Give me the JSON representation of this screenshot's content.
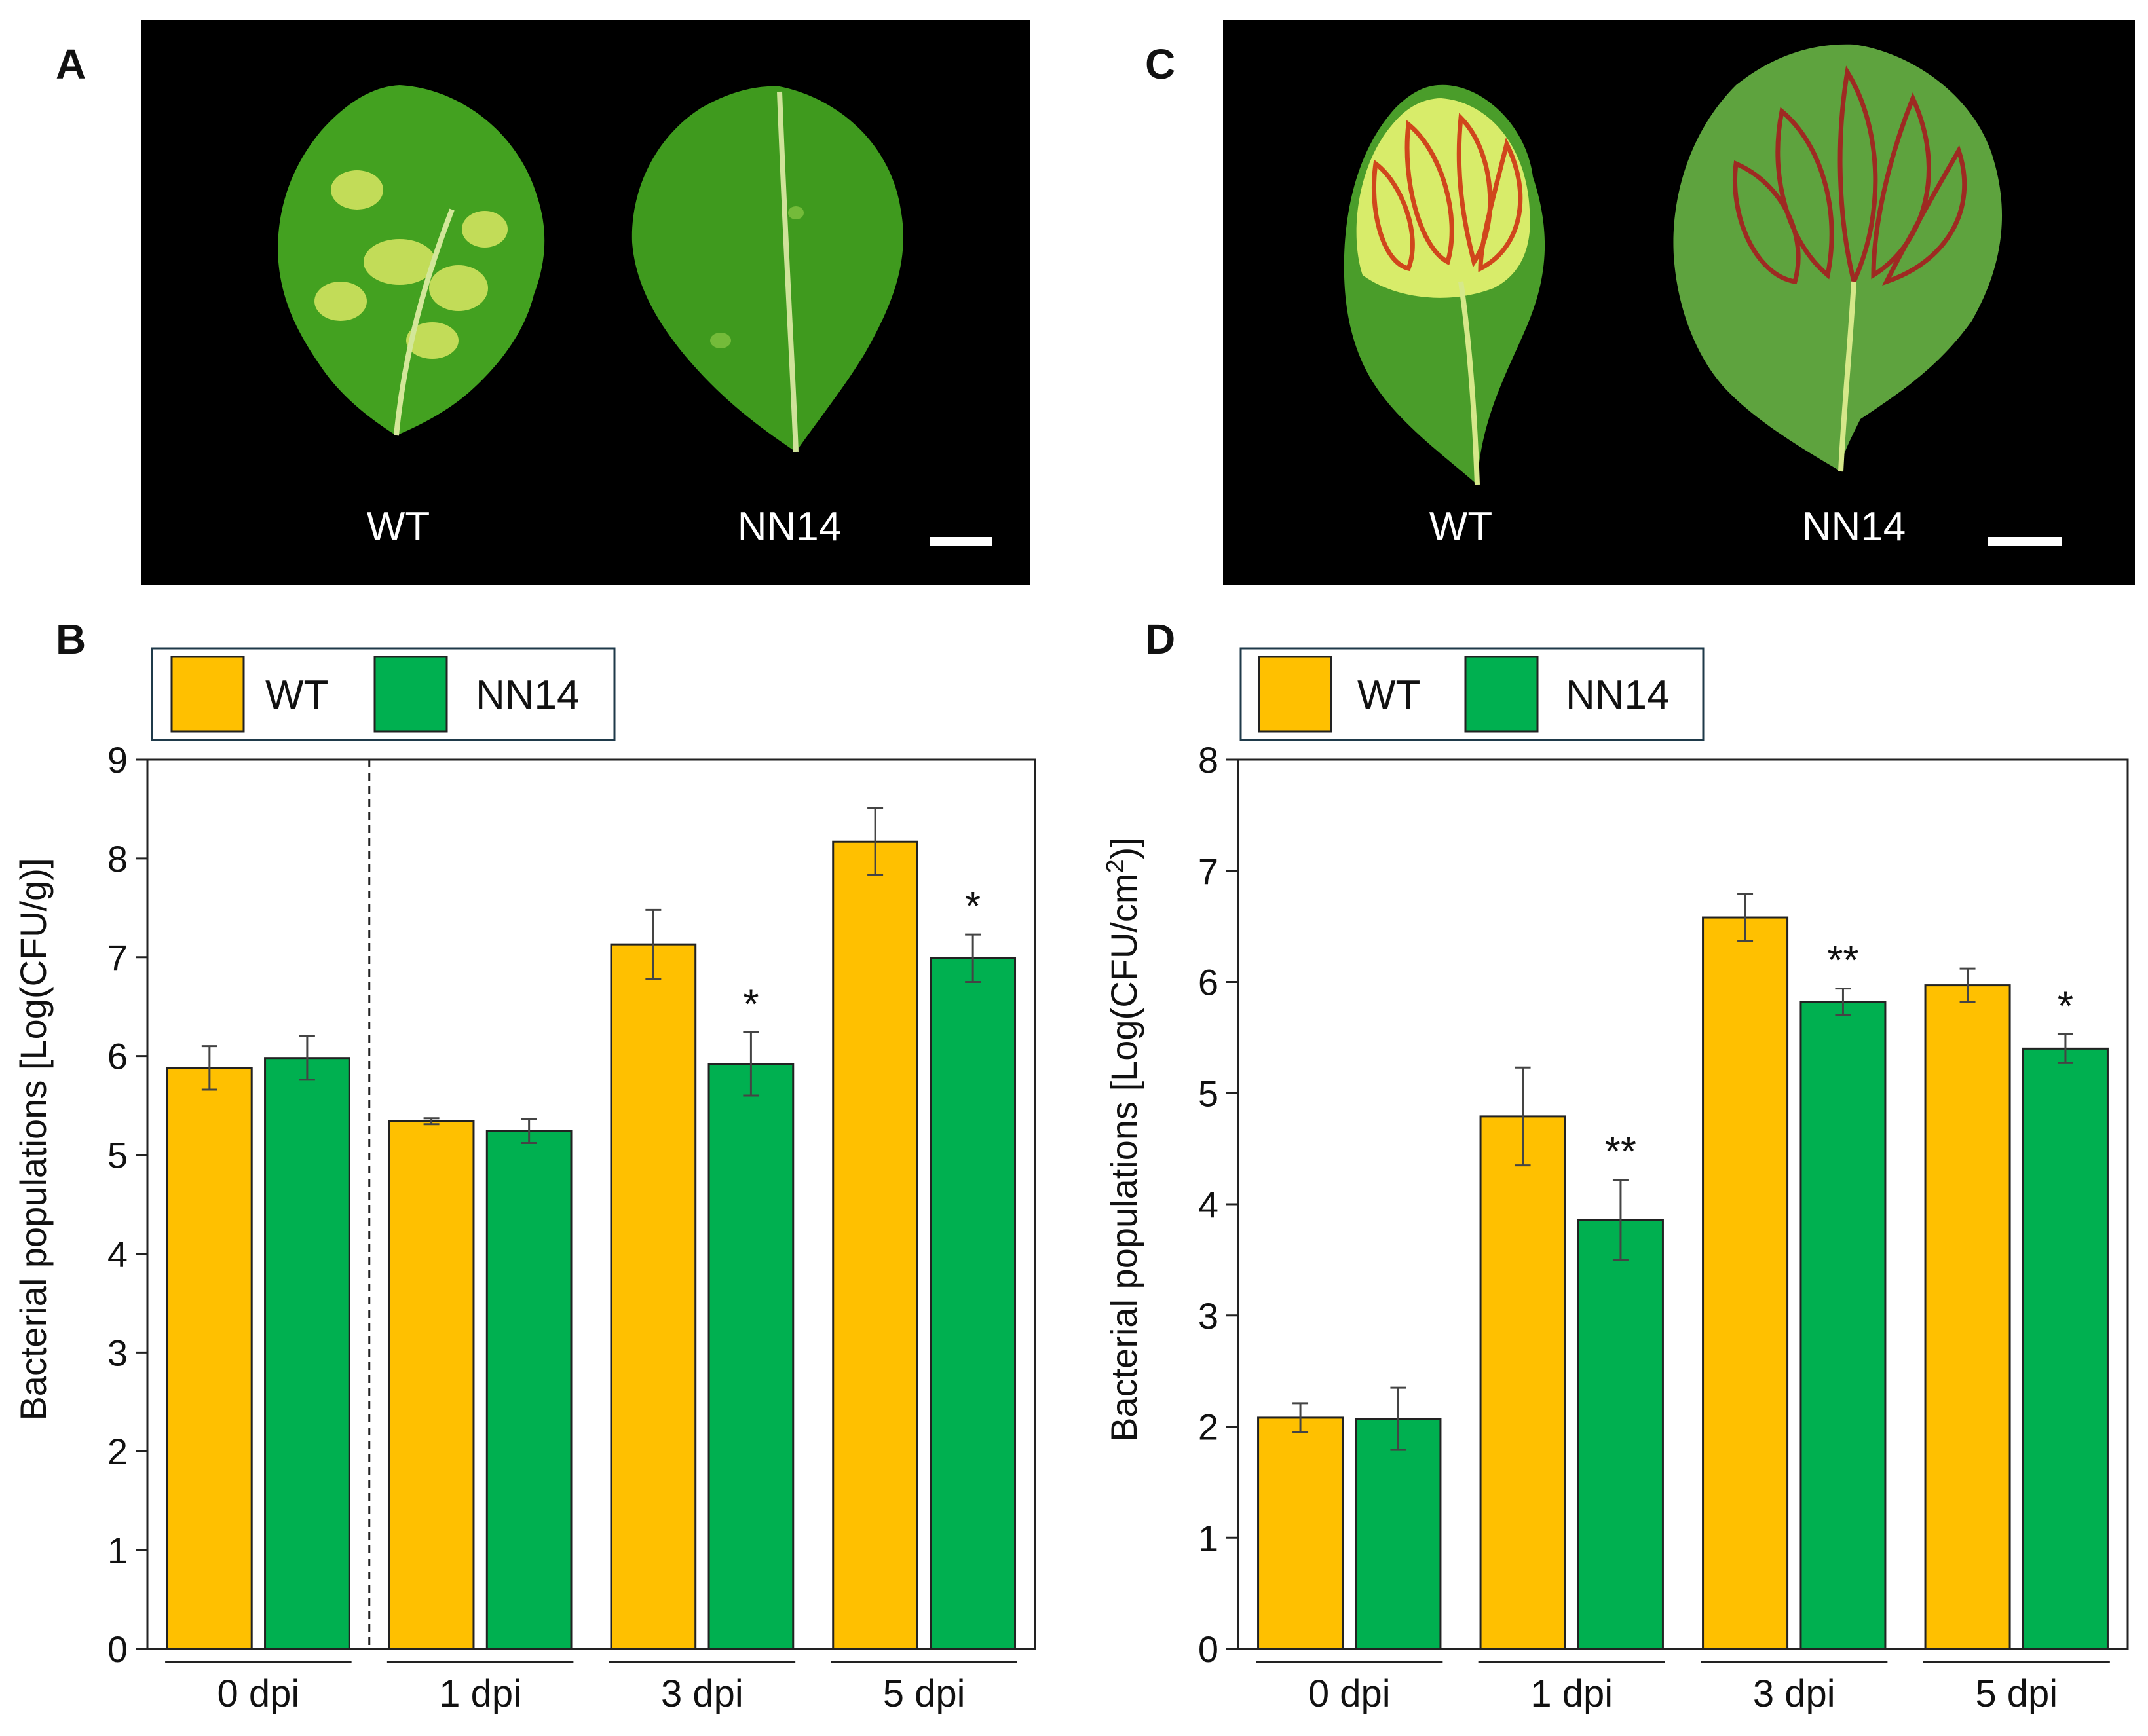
{
  "panels": {
    "a": {
      "letter": "A",
      "photo_labels": [
        "WT",
        "NN14"
      ],
      "leaves": [
        {
          "genotype": "WT",
          "leaf_color": "#43a120",
          "lesion_color": "#c2dc58",
          "vein_color": "#d3e79a"
        },
        {
          "genotype": "NN14",
          "leaf_color": "#3f9a1e",
          "lesion_color": "#74bb3a",
          "vein_color": "#cfe39a"
        }
      ]
    },
    "c": {
      "letter": "C",
      "photo_labels": [
        "WT",
        "NN14"
      ],
      "leaves": [
        {
          "genotype": "WT",
          "leaf_color": "#4a9d2a",
          "yellow_color": "#d8ec6a",
          "ring_color": "#d0461c"
        },
        {
          "genotype": "NN14",
          "leaf_color": "#5ea33e",
          "ring_color": "#9e2a22"
        }
      ]
    },
    "b": {
      "letter": "B"
    },
    "d": {
      "letter": "D"
    }
  },
  "colors": {
    "wt": "#ffc000",
    "nn14": "#00b050",
    "photo_background": "#000000"
  },
  "chart_data": [
    {
      "panel": "B",
      "type": "bar",
      "categories": [
        "0 dpi",
        "1 dpi",
        "3 dpi",
        "5 dpi"
      ],
      "series": [
        {
          "name": "WT",
          "values": [
            5.88,
            5.34,
            7.13,
            8.17
          ],
          "errors": [
            0.22,
            0.03,
            0.35,
            0.34
          ],
          "significance": [
            "",
            "",
            "",
            ""
          ]
        },
        {
          "name": "NN14",
          "values": [
            5.98,
            5.24,
            5.92,
            6.99
          ],
          "errors": [
            0.22,
            0.12,
            0.32,
            0.24
          ],
          "significance": [
            "",
            "",
            "*",
            "*"
          ]
        }
      ],
      "ylabel": "Bacterial populations [Log(CFU/g)]",
      "ylim": [
        0,
        9
      ],
      "yticks": [
        0,
        1,
        2,
        3,
        4,
        5,
        6,
        7,
        8,
        9
      ],
      "separator_after_category": 0,
      "legend": {
        "labels": [
          "WT",
          "NN14"
        ],
        "position": "top-left, above plot"
      },
      "grid": false
    },
    {
      "panel": "D",
      "type": "bar",
      "categories": [
        "0 dpi",
        "1 dpi",
        "3 dpi",
        "5 dpi"
      ],
      "series": [
        {
          "name": "WT",
          "values": [
            2.08,
            4.79,
            6.58,
            5.97
          ],
          "errors": [
            0.13,
            0.44,
            0.21,
            0.15
          ],
          "significance": [
            "",
            "",
            "",
            ""
          ]
        },
        {
          "name": "NN14",
          "values": [
            2.07,
            3.86,
            5.82,
            5.4
          ],
          "errors": [
            0.28,
            0.36,
            0.12,
            0.13
          ],
          "significance": [
            "",
            "**",
            "**",
            "*"
          ]
        }
      ],
      "ylabel_prefix": "Bacterial populations [Log(CFU/cm",
      "ylabel_superscript": "2",
      "ylabel_suffix": ")]",
      "ylim": [
        0,
        8
      ],
      "yticks": [
        0,
        1,
        2,
        3,
        4,
        5,
        6,
        7,
        8
      ],
      "legend": {
        "labels": [
          "WT",
          "NN14"
        ],
        "position": "top-left, above plot"
      },
      "grid": false
    }
  ]
}
